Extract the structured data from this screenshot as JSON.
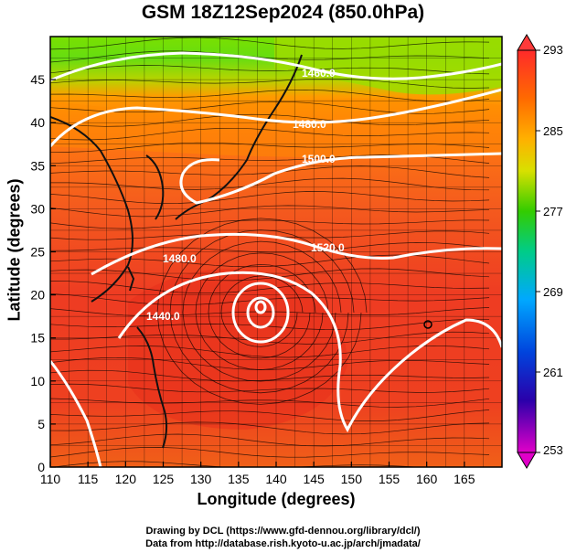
{
  "chart_data": {
    "type": "heatmap",
    "title": "GSM 18Z12Sep2024 (850.0hPa)",
    "xlabel": "Longitude (degrees)",
    "ylabel": "Latitude  (degrees)",
    "xlim": [
      110,
      170
    ],
    "ylim": [
      0,
      50
    ],
    "x_ticks": [
      110,
      115,
      120,
      125,
      130,
      135,
      140,
      145,
      150,
      155,
      160,
      165
    ],
    "y_ticks": [
      0,
      5,
      10,
      15,
      20,
      25,
      30,
      35,
      40,
      45
    ],
    "colorbar": {
      "min": 253,
      "max": 293,
      "tick_labels": [
        293,
        285,
        277,
        269,
        261,
        253
      ],
      "colors": [
        "#ff3030",
        "#ff7a00",
        "#ffcc00",
        "#33cc00",
        "#00cc88",
        "#00a0ff",
        "#0033cc",
        "#330099",
        "#cc00cc"
      ]
    },
    "field_colors": {
      "north_cool": "#44dd22",
      "mid_warm": "#ffaa00",
      "south_hot": "#ee3322",
      "contour": "#ffffff",
      "streamline": "#000000",
      "coastline": "#000000"
    },
    "height_contours": [
      {
        "label": "1460.0",
        "value": 1460
      },
      {
        "label": "1480.0",
        "value": 1480
      },
      {
        "label": "1500.0",
        "value": 1500
      },
      {
        "label": "1520.0",
        "value": 1520
      },
      {
        "label": "1440.0",
        "value": 1440
      }
    ],
    "typhoon_center": {
      "lon": 137.5,
      "lat": 20.5
    }
  },
  "credits": [
    "Drawing by DCL (https://www.gfd-dennou.org/library/dcl/)",
    "Data from http://database.rish.kyoto-u.ac.jp/arch/jmadata/"
  ]
}
